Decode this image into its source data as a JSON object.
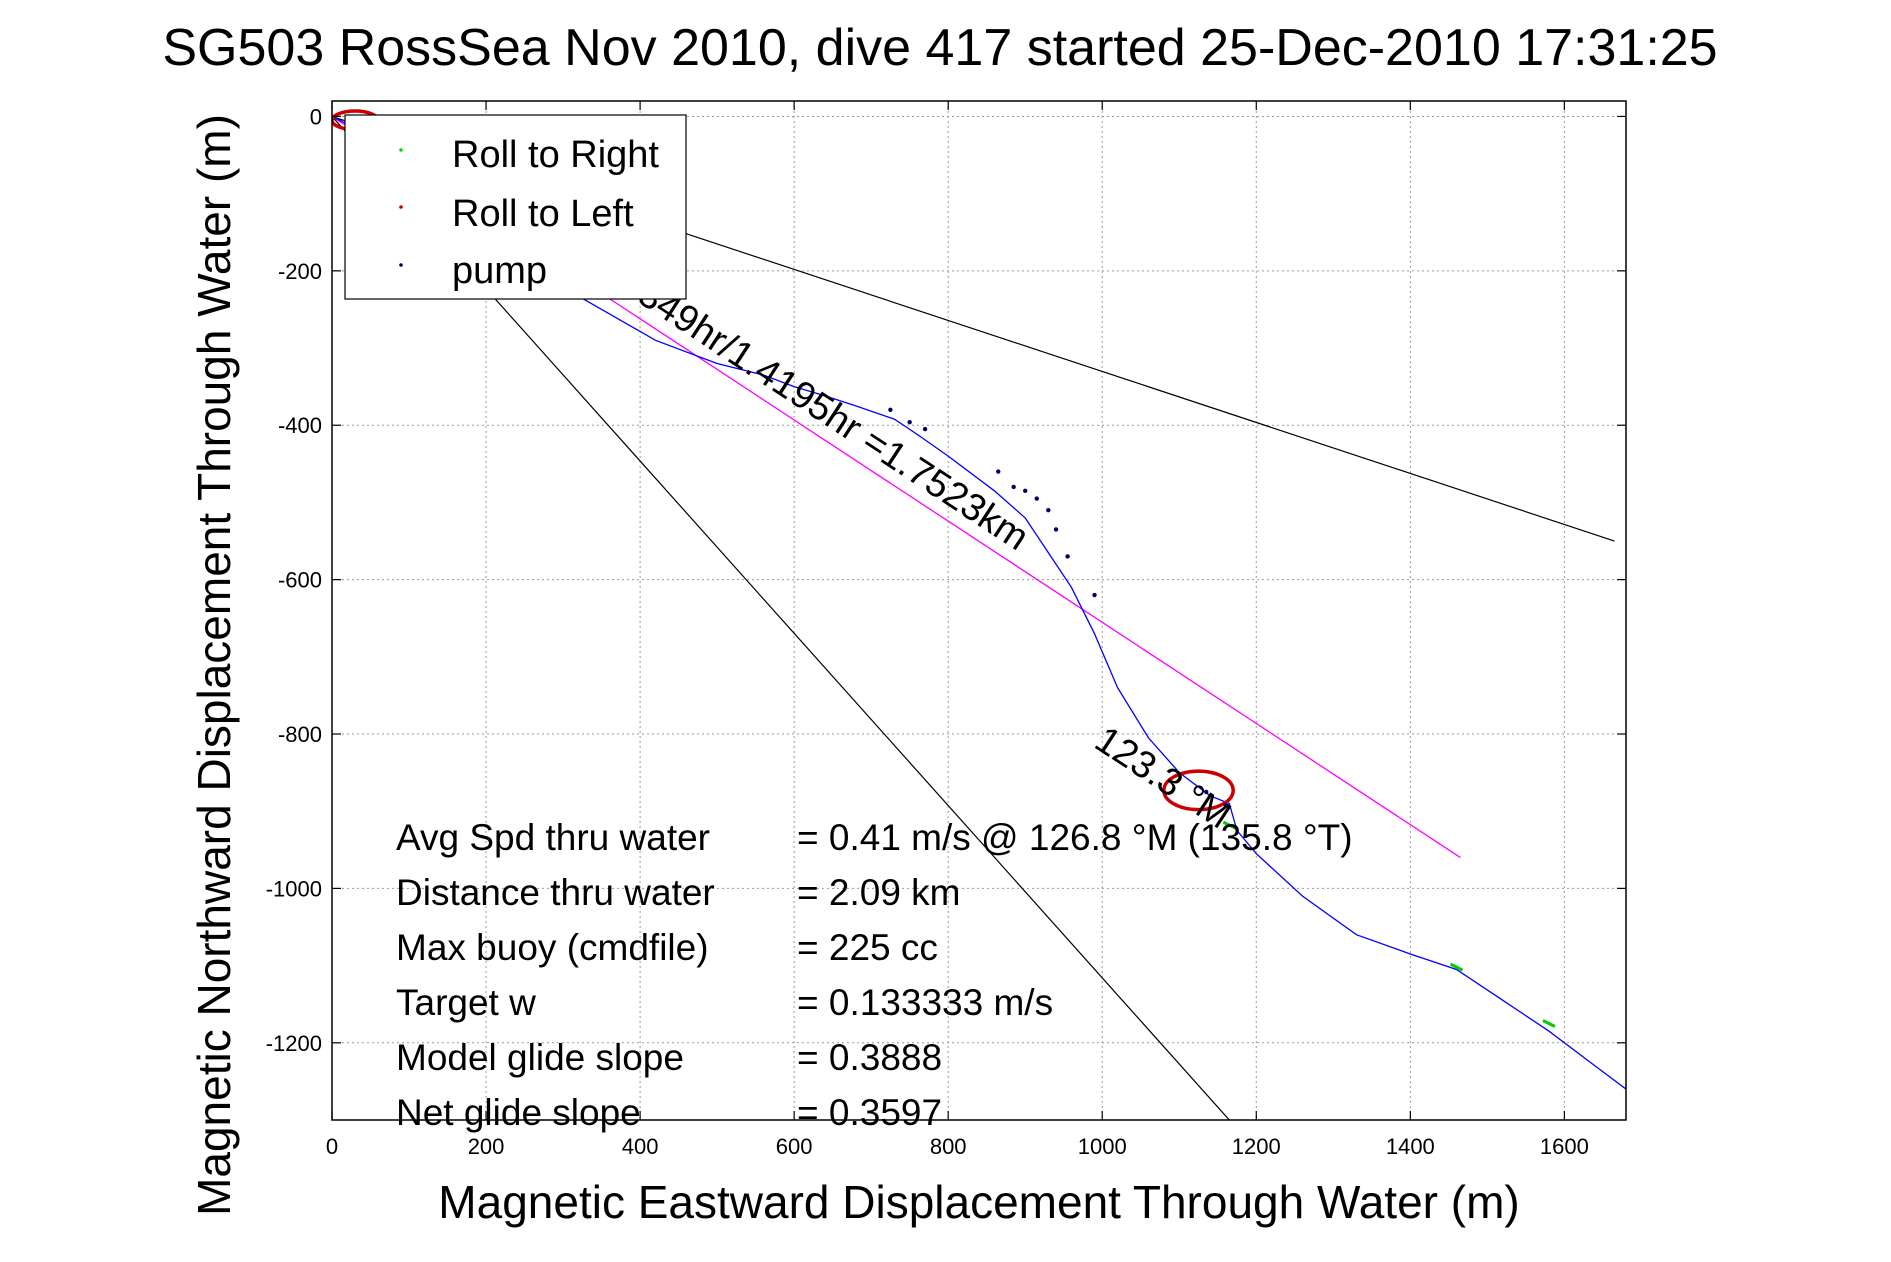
{
  "chart_data": {
    "type": "line",
    "title": "SG503 RossSea Nov 2010, dive 417 started 25-Dec-2010 17:31:25",
    "xlabel": "Magnetic Eastward Displacement Through Water (m)",
    "ylabel": "Magnetic Northward Displacement Through Water (m)",
    "xlim": [
      0,
      1680
    ],
    "ylim": [
      -1300,
      20
    ],
    "x_ticks": [
      0,
      200,
      400,
      600,
      800,
      1000,
      1200,
      1400,
      1600
    ],
    "y_ticks": [
      0,
      -200,
      -400,
      -600,
      -800,
      -1000,
      -1200
    ],
    "grid": true,
    "legend": {
      "position": "top-left",
      "entries": [
        {
          "label": "Roll to Right",
          "color": "#00dd00"
        },
        {
          "label": "Roll to Left",
          "color": "#cc0000"
        },
        {
          "label": "pump",
          "color": "#000066"
        }
      ]
    },
    "track": {
      "color": "#0000ff",
      "x": [
        0,
        20,
        60,
        120,
        200,
        280,
        350,
        420,
        500,
        560,
        600,
        640,
        680,
        730,
        760,
        800,
        860,
        900,
        930,
        960,
        990,
        1020,
        1060,
        1100,
        1140,
        1165,
        1175,
        1200,
        1260,
        1330,
        1400,
        1460,
        1520,
        1580,
        1640,
        1680
      ],
      "y": [
        0,
        -10,
        -40,
        -90,
        -160,
        -210,
        -250,
        -290,
        -320,
        -335,
        -350,
        -362,
        -375,
        -392,
        -412,
        -440,
        -485,
        -520,
        -565,
        -610,
        -670,
        -740,
        -805,
        -850,
        -880,
        -890,
        -925,
        -955,
        -1010,
        -1060,
        -1085,
        -1105,
        -1145,
        -1185,
        -1230,
        -1260
      ]
    },
    "start_loop": {
      "cx": 30,
      "cy": -5,
      "rx": 30,
      "ry": 12
    },
    "end_loop": {
      "cx": 1125,
      "cy": -873,
      "rx": 45,
      "ry": 25
    },
    "pump_points": {
      "x": [
        725,
        750,
        770,
        865,
        885,
        900,
        915,
        930,
        940,
        955,
        990,
        1135,
        1160
      ],
      "y": [
        -380,
        -396,
        -405,
        -460,
        -480,
        -485,
        -495,
        -510,
        -535,
        -570,
        -620,
        -875,
        -892
      ]
    },
    "roll_right_points": {
      "x": [
        1165,
        1460,
        1580
      ],
      "y": [
        -918,
        -1102,
        -1175
      ]
    },
    "heading_line": {
      "color": "#ff00ff",
      "x": [
        0,
        1465
      ],
      "y": [
        0,
        -960
      ],
      "label": "8.0033min/0.33349hr/1.4195hr =1.7523km"
    },
    "heading_label": "123.3 °M",
    "cone_lines": {
      "color": "#000000",
      "lines": [
        {
          "x": [
            0,
            1665
          ],
          "y": [
            0,
            -550
          ]
        },
        {
          "x": [
            0,
            1165
          ],
          "y": [
            0,
            -1300
          ]
        }
      ]
    },
    "stats": [
      {
        "label": "Avg Spd thru water",
        "value": "=  0.41 m/s @ 126.8 °M (135.8 °T)"
      },
      {
        "label": "Distance thru water",
        "value": "=  2.09 km"
      },
      {
        "label": "Max buoy (cmdfile)",
        "value": "= 225 cc"
      },
      {
        "label": "Target w",
        "value": "= 0.133333 m/s"
      },
      {
        "label": "Model glide slope",
        "value": "= 0.3888"
      },
      {
        "label": "Net glide slope",
        "value": "= 0.3597"
      }
    ]
  }
}
